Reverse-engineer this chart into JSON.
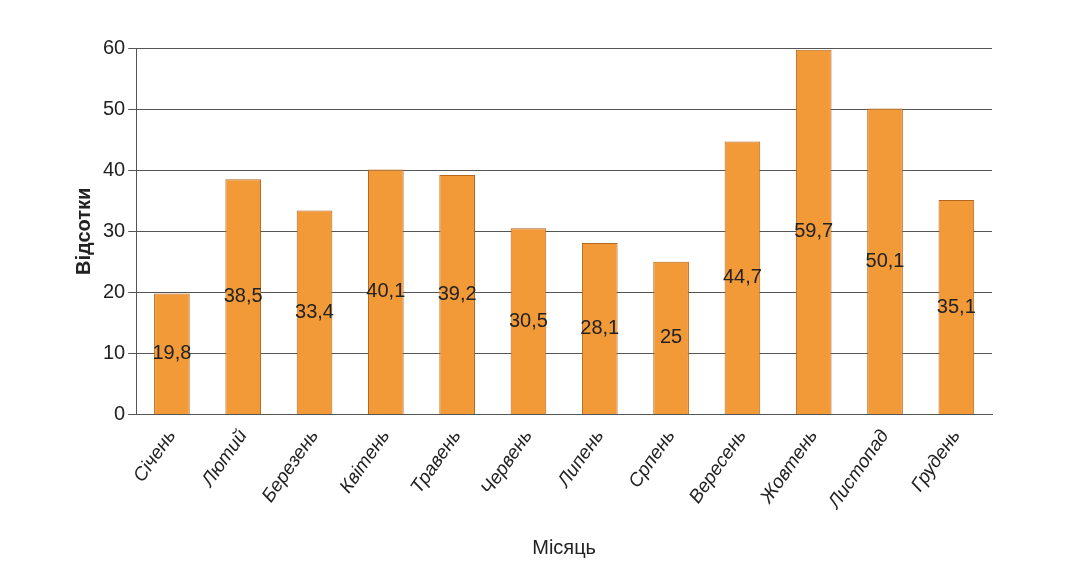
{
  "chart_data": {
    "type": "bar",
    "xlabel": "Місяць",
    "ylabel": "Відсотки",
    "categories": [
      "Січень",
      "Лютий",
      "Березень",
      "Квітень",
      "Травень",
      "Червень",
      "Липень",
      "Српень",
      "Вересень",
      "Жовтень",
      "Листопад",
      "Грудень"
    ],
    "values": [
      19.8,
      38.5,
      33.4,
      40.1,
      39.2,
      30.5,
      28.1,
      25,
      44.7,
      59.7,
      50.1,
      35.1
    ],
    "value_labels": [
      "19,8",
      "38,5",
      "33,4",
      "40,1",
      "39,2",
      "30,5",
      "28,1",
      "25",
      "44,7",
      "59,7",
      "50,1",
      "35,1"
    ],
    "color": "#f29a38",
    "ylim": [
      0,
      60
    ],
    "yticks": [
      0,
      10,
      20,
      30,
      40,
      50,
      60
    ],
    "grid": "y"
  }
}
